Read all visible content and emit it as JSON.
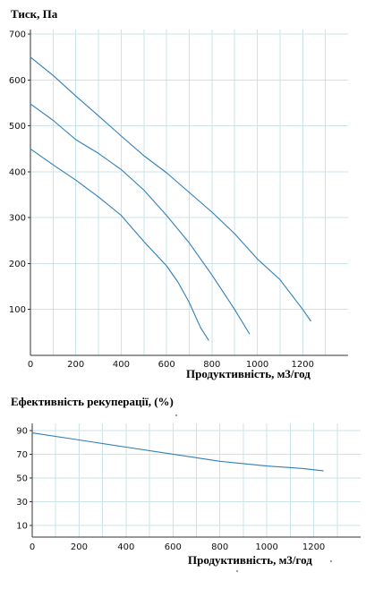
{
  "chart_data": [
    {
      "type": "line",
      "title": "Тиск, Па",
      "xlabel": "Продуктивність, м3/год",
      "ylabel": "",
      "xlim": [
        0,
        1400
      ],
      "ylim": [
        0,
        710
      ],
      "xticks": [
        0,
        200,
        400,
        600,
        800,
        1000,
        1200
      ],
      "yticks": [
        100,
        200,
        300,
        400,
        500,
        600,
        700
      ],
      "grid": true,
      "color": "#2f7fb8",
      "series": [
        {
          "x": [
            0,
            100,
            200,
            300,
            400,
            500,
            600,
            700,
            800,
            900,
            1000,
            1100,
            1200,
            1235
          ],
          "y": [
            650,
            610,
            565,
            522,
            478,
            435,
            398,
            355,
            312,
            265,
            210,
            165,
            100,
            75
          ]
        },
        {
          "x": [
            0,
            100,
            200,
            300,
            400,
            500,
            600,
            700,
            800,
            900,
            965
          ],
          "y": [
            548,
            512,
            470,
            440,
            405,
            360,
            305,
            245,
            175,
            100,
            47
          ]
        },
        {
          "x": [
            0,
            100,
            200,
            300,
            400,
            500,
            600,
            650,
            700,
            750,
            785
          ],
          "y": [
            450,
            415,
            382,
            345,
            305,
            248,
            195,
            160,
            115,
            60,
            33
          ]
        }
      ]
    },
    {
      "type": "line",
      "title": "Ефективність рекуперації, (%)",
      "xlabel": "Продуктивність, м3/год",
      "ylabel": "",
      "xlim": [
        0,
        1400
      ],
      "ylim": [
        0,
        96
      ],
      "xticks": [
        0,
        200,
        400,
        600,
        800,
        1000,
        1200
      ],
      "yticks": [
        10,
        30,
        50,
        70,
        90
      ],
      "grid": true,
      "color": "#2f7fb8",
      "series": [
        {
          "x": [
            0,
            200,
            400,
            600,
            800,
            1000,
            1150,
            1240
          ],
          "y": [
            88,
            82,
            76,
            70,
            64,
            60,
            58,
            56
          ]
        }
      ]
    }
  ]
}
